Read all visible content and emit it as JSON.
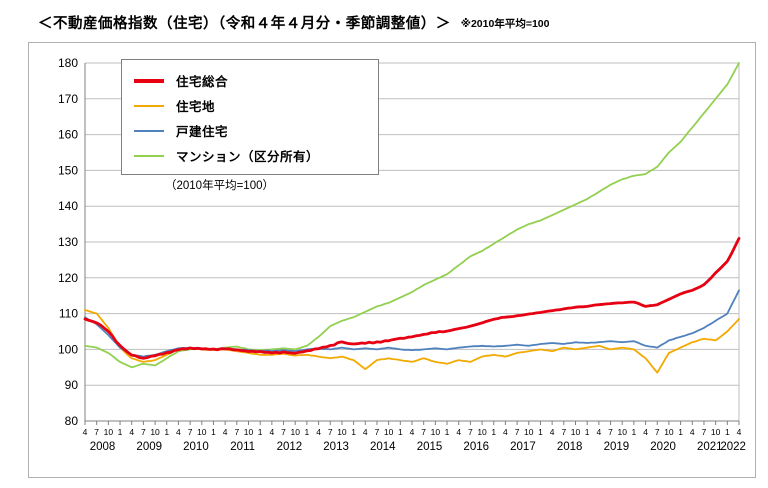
{
  "page": {
    "title": "＜不動産価格指数（住宅）（令和４年４月分・季節調整値）＞",
    "note": "※2010年平均=100"
  },
  "chart_data": {
    "type": "line",
    "title": "不動産価格指数（住宅）",
    "x_start": "2008-04",
    "x_frequency_months": 1,
    "x_tick_every": 3,
    "x_tick_pattern": [
      "4",
      "7",
      "10",
      "1"
    ],
    "years": [
      "2008",
      "2009",
      "2010",
      "2011",
      "2012",
      "2013",
      "2014",
      "2015",
      "2016",
      "2017",
      "2018",
      "2019",
      "2020",
      "2021",
      "2022"
    ],
    "ylim": [
      80,
      180
    ],
    "ytick_step": 10,
    "grid": true,
    "legend_position": "top-left",
    "legend_note": "（2010年平均=100）",
    "series": [
      {
        "name": "住宅総合",
        "color": "#e60012",
        "width": 2.8,
        "values": [
          108.5,
          108.1,
          107.8,
          107.4,
          106.8,
          105.9,
          105.0,
          103.8,
          102.2,
          101.1,
          100.1,
          99.2,
          98.4,
          98.2,
          97.7,
          97.5,
          97.7,
          98.1,
          98.2,
          98.6,
          98.7,
          99.1,
          99.2,
          99.7,
          99.9,
          100.2,
          100.1,
          100.4,
          100.2,
          100.3,
          100.1,
          100.2,
          100.0,
          100.1,
          99.9,
          100.2,
          100.1,
          100.2,
          99.9,
          99.9,
          99.7,
          99.6,
          99.4,
          99.5,
          99.3,
          99.4,
          99.2,
          99.2,
          99.0,
          99.2,
          99.0,
          99.3,
          99.1,
          99.0,
          98.9,
          99.2,
          99.3,
          99.6,
          99.7,
          100.1,
          100.2,
          100.6,
          100.7,
          101.1,
          101.2,
          101.9,
          102.1,
          101.8,
          101.6,
          101.5,
          101.6,
          101.8,
          101.7,
          102.0,
          101.8,
          102.1,
          102.0,
          102.4,
          102.4,
          102.7,
          102.9,
          103.1,
          103.1,
          103.4,
          103.5,
          103.8,
          103.9,
          104.2,
          104.3,
          104.7,
          104.7,
          105.0,
          104.9,
          105.1,
          105.3,
          105.6,
          105.8,
          106.0,
          106.2,
          106.5,
          106.8,
          107.1,
          107.4,
          107.8,
          108.1,
          108.4,
          108.6,
          108.9,
          109.0,
          109.1,
          109.2,
          109.4,
          109.5,
          109.7,
          109.9,
          110.0,
          110.2,
          110.3,
          110.5,
          110.7,
          110.8,
          111.0,
          111.1,
          111.3,
          111.5,
          111.6,
          111.8,
          111.9,
          111.9,
          112.0,
          112.2,
          112.4,
          112.5,
          112.6,
          112.7,
          112.8,
          112.9,
          113.0,
          113.0,
          113.1,
          113.2,
          113.2,
          112.9,
          112.4,
          112.0,
          112.2,
          112.3,
          112.5,
          113.0,
          113.5,
          114.0,
          114.5,
          115.0,
          115.5,
          115.9,
          116.2,
          116.5,
          117.0,
          117.5,
          118.1,
          119.1,
          120.2,
          121.4,
          122.4,
          123.5,
          124.6,
          126.6,
          128.8,
          131.0
        ]
      },
      {
        "name": "住宅地",
        "color": "#f2a900",
        "width": 1.8,
        "values": [
          111.0,
          110.7,
          110.3,
          110.0,
          108.7,
          107.3,
          106.0,
          104.1,
          102.3,
          100.5,
          99.5,
          98.4,
          97.5,
          97.2,
          96.8,
          96.5,
          96.7,
          96.8,
          97.0,
          97.5,
          98.0,
          98.5,
          99.0,
          99.6,
          100.0,
          100.1,
          100.2,
          100.3,
          100.2,
          100.1,
          100.0,
          99.9,
          99.9,
          99.8,
          99.9,
          100.0,
          100.0,
          99.8,
          99.7,
          99.5,
          99.3,
          99.2,
          99.0,
          98.8,
          98.7,
          98.5,
          98.5,
          98.5,
          98.5,
          98.6,
          98.7,
          98.8,
          98.6,
          98.4,
          98.3,
          98.4,
          98.4,
          98.5,
          98.3,
          98.2,
          98.0,
          97.8,
          97.7,
          97.5,
          97.7,
          97.8,
          98.0,
          97.7,
          97.3,
          97.0,
          96.2,
          95.3,
          94.5,
          95.3,
          96.2,
          97.0,
          97.2,
          97.3,
          97.5,
          97.3,
          97.2,
          97.0,
          96.8,
          96.7,
          96.5,
          96.8,
          97.2,
          97.5,
          97.2,
          96.8,
          96.5,
          96.3,
          96.2,
          96.0,
          96.3,
          96.7,
          97.0,
          96.8,
          96.7,
          96.5,
          97.0,
          97.5,
          98.0,
          98.2,
          98.3,
          98.5,
          98.3,
          98.2,
          98.0,
          98.3,
          98.7,
          99.0,
          99.2,
          99.3,
          99.5,
          99.7,
          99.8,
          100.0,
          99.8,
          99.7,
          99.5,
          99.8,
          100.2,
          100.5,
          100.3,
          100.2,
          100.0,
          100.2,
          100.3,
          100.5,
          100.7,
          100.8,
          101.0,
          100.7,
          100.3,
          100.0,
          100.2,
          100.3,
          100.5,
          100.3,
          100.2,
          100.0,
          99.2,
          98.3,
          97.5,
          96.2,
          94.8,
          93.5,
          95.3,
          97.2,
          99.0,
          99.5,
          100.0,
          100.5,
          101.0,
          101.5,
          102.0,
          102.3,
          102.7,
          103.0,
          102.8,
          102.7,
          102.5,
          103.3,
          104.2,
          105.0,
          106.2,
          107.3,
          108.5
        ]
      },
      {
        "name": "戸建住宅",
        "color": "#4f81bd",
        "width": 1.8,
        "values": [
          109.0,
          108.3,
          107.7,
          107.0,
          106.0,
          105.0,
          104.0,
          102.8,
          101.7,
          100.5,
          99.8,
          99.2,
          98.5,
          98.3,
          98.2,
          98.0,
          98.2,
          98.3,
          98.5,
          98.8,
          99.2,
          99.5,
          99.8,
          100.0,
          100.3,
          100.4,
          100.4,
          100.5,
          100.4,
          100.4,
          100.3,
          100.2,
          100.1,
          100.0,
          100.1,
          100.2,
          100.3,
          100.2,
          100.1,
          100.0,
          99.9,
          99.9,
          99.8,
          99.7,
          99.6,
          99.5,
          99.6,
          99.7,
          99.5,
          99.6,
          99.7,
          99.8,
          99.7,
          99.6,
          99.5,
          99.7,
          99.8,
          100.0,
          100.1,
          100.2,
          100.2,
          100.1,
          100.1,
          100.0,
          100.2,
          100.3,
          100.5,
          100.3,
          100.2,
          100.0,
          100.1,
          100.2,
          100.3,
          100.2,
          100.1,
          100.0,
          100.2,
          100.3,
          100.5,
          100.3,
          100.2,
          100.0,
          99.9,
          99.9,
          99.8,
          99.9,
          99.9,
          100.0,
          100.1,
          100.2,
          100.3,
          100.2,
          100.1,
          100.0,
          100.2,
          100.3,
          100.5,
          100.6,
          100.7,
          100.8,
          100.9,
          100.9,
          101.0,
          100.9,
          100.9,
          100.8,
          100.9,
          100.9,
          101.0,
          101.1,
          101.2,
          101.3,
          101.2,
          101.1,
          101.0,
          101.2,
          101.3,
          101.5,
          101.6,
          101.7,
          101.8,
          101.7,
          101.6,
          101.5,
          101.7,
          101.8,
          102.0,
          101.9,
          101.9,
          101.8,
          101.9,
          101.9,
          102.0,
          102.1,
          102.2,
          102.3,
          102.2,
          102.1,
          102.0,
          102.1,
          102.2,
          102.3,
          101.9,
          101.4,
          101.0,
          100.8,
          100.7,
          100.5,
          101.2,
          101.8,
          102.5,
          102.8,
          103.2,
          103.5,
          103.8,
          104.2,
          104.5,
          105.0,
          105.5,
          106.0,
          106.7,
          107.3,
          108.0,
          108.7,
          109.3,
          110.0,
          112.2,
          114.3,
          116.5
        ]
      },
      {
        "name": "マンション（区分所有）",
        "color": "#92d050",
        "width": 1.8,
        "values": [
          101.0,
          100.8,
          100.7,
          100.5,
          100.0,
          99.5,
          99.0,
          98.2,
          97.3,
          96.5,
          96.0,
          95.5,
          95.0,
          95.3,
          95.7,
          96.0,
          95.8,
          95.7,
          95.5,
          96.2,
          96.8,
          97.5,
          98.2,
          98.8,
          99.5,
          99.7,
          99.8,
          100.0,
          100.1,
          100.2,
          100.3,
          100.2,
          100.1,
          100.0,
          100.2,
          100.3,
          100.5,
          100.6,
          100.7,
          100.8,
          100.5,
          100.3,
          100.0,
          99.9,
          99.9,
          99.8,
          99.9,
          99.9,
          100.0,
          100.1,
          100.2,
          100.3,
          100.2,
          100.1,
          100.0,
          100.3,
          100.7,
          101.0,
          101.8,
          102.7,
          103.5,
          104.5,
          105.5,
          106.5,
          107.0,
          107.5,
          108.0,
          108.3,
          108.7,
          109.0,
          109.5,
          110.0,
          110.5,
          111.0,
          111.5,
          112.0,
          112.3,
          112.7,
          113.0,
          113.5,
          114.0,
          114.5,
          115.0,
          115.5,
          116.0,
          116.7,
          117.3,
          118.0,
          118.5,
          119.0,
          119.5,
          120.0,
          120.5,
          121.0,
          121.8,
          122.7,
          123.5,
          124.3,
          125.2,
          126.0,
          126.5,
          127.0,
          127.5,
          128.2,
          128.8,
          129.5,
          130.2,
          130.8,
          131.5,
          132.2,
          132.8,
          133.5,
          134.0,
          134.5,
          135.0,
          135.3,
          135.7,
          136.0,
          136.5,
          137.0,
          137.5,
          138.0,
          138.5,
          139.0,
          139.5,
          140.0,
          140.5,
          141.0,
          141.5,
          142.0,
          142.7,
          143.3,
          144.0,
          144.7,
          145.3,
          146.0,
          146.5,
          147.0,
          147.5,
          147.8,
          148.2,
          148.5,
          148.7,
          148.8,
          149.0,
          149.7,
          150.3,
          151.0,
          152.3,
          153.7,
          155.0,
          156.0,
          157.0,
          158.0,
          159.3,
          160.7,
          162.0,
          163.3,
          164.7,
          166.0,
          167.3,
          168.7,
          170.0,
          171.3,
          172.7,
          174.0,
          176.0,
          178.0,
          180.0
        ]
      }
    ]
  }
}
